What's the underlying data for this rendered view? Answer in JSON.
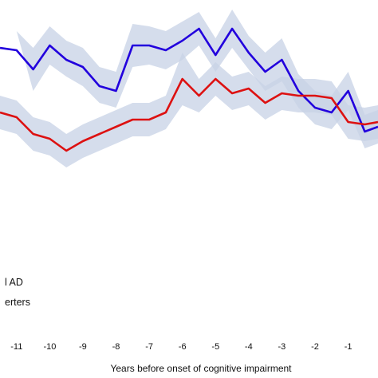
{
  "chart_data": {
    "type": "line",
    "xlabel": "Years before onset of cognitive impairment",
    "ylabel": "",
    "title": "",
    "x_ticks": [
      -11,
      -10,
      -9,
      -8,
      -7,
      -6,
      -5,
      -4,
      -3,
      -2,
      -1
    ],
    "xlim": [
      -11.5,
      -0.1
    ],
    "ylim": [
      0,
      100
    ],
    "grid": false,
    "legend_placement": "bottom-left",
    "legend_entries": [
      "l AD",
      "erters"
    ],
    "series": [
      {
        "color": "#2200dd",
        "band_color": "#c7d2e6",
        "x": [
          -11.5,
          -11.0,
          -10.5,
          -10.0,
          -9.5,
          -9.0,
          -8.5,
          -8.0,
          -7.5,
          -7.0,
          -6.5,
          -6.0,
          -5.5,
          -5.0,
          -4.5,
          -4.0,
          -3.5,
          -3.0,
          -2.5,
          -2.0,
          -1.5,
          -1.0,
          -0.5,
          -0.1
        ],
        "values": [
          80,
          79,
          71,
          81,
          75,
          72,
          64,
          62,
          81,
          81,
          79,
          83,
          88,
          77,
          88,
          78,
          70,
          75,
          62,
          55,
          53,
          62,
          45,
          47
        ],
        "lower": [
          88,
          87,
          62,
          73,
          68,
          64,
          57,
          55,
          72,
          73,
          71,
          75,
          81,
          70,
          80,
          71,
          62,
          66,
          55,
          48,
          46,
          54,
          38,
          40
        ],
        "upper": [
          88,
          87,
          80,
          89,
          83,
          80,
          72,
          70,
          90,
          89,
          87,
          91,
          95,
          84,
          96,
          85,
          78,
          84,
          69,
          62,
          60,
          70,
          52,
          54
        ]
      },
      {
        "color": "#dd1111",
        "band_color": "#c7d2e6",
        "x": [
          -11.5,
          -11.0,
          -10.5,
          -10.0,
          -9.5,
          -9.0,
          -8.5,
          -8.0,
          -7.5,
          -7.0,
          -6.5,
          -6.0,
          -5.5,
          -5.0,
          -4.5,
          -4.0,
          -3.5,
          -3.0,
          -2.5,
          -2.0,
          -1.5,
          -1.0,
          -0.5,
          -0.1
        ],
        "values": [
          53,
          51,
          44,
          42,
          37,
          41,
          44,
          47,
          50,
          50,
          53,
          67,
          60,
          67,
          61,
          63,
          57,
          61,
          60,
          60,
          59,
          49,
          48,
          49
        ],
        "lower": [
          46,
          44,
          37,
          35,
          30,
          34,
          37,
          40,
          43,
          43,
          46,
          56,
          53,
          60,
          54,
          56,
          50,
          54,
          53,
          53,
          52,
          42,
          41,
          42
        ],
        "upper": [
          60,
          58,
          51,
          49,
          44,
          48,
          51,
          54,
          57,
          57,
          60,
          78,
          67,
          74,
          68,
          70,
          64,
          68,
          67,
          67,
          66,
          56,
          55,
          56
        ]
      }
    ]
  }
}
